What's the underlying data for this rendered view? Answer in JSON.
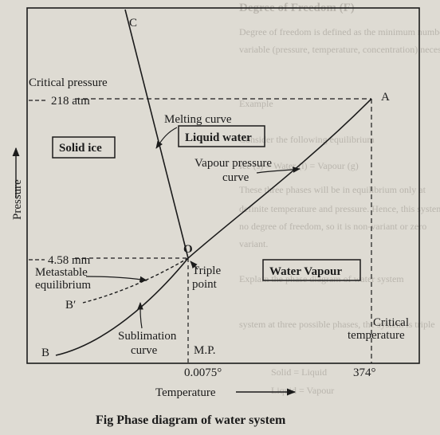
{
  "bleed_text": [
    "Degree of Freedom (F)",
    "Degree of freedom is defined as the minimum number of",
    "variable (pressure, temperature, concentration) necessary to define",
    "Example",
    "Consider the following equilibrium",
    "Ice (s)  =  Water (l)  =  Vapour (g)",
    "These three phases will be in equilibrium only at",
    "definite temperature and pressure. Hence, this system is",
    "no degree of freedom, so it is non-variant or zero",
    "variant.",
    "Explain the phase diagram of water system",
    "system at three possible phases, the system is triple",
    "Solid  =  Liquid",
    "Liquid  =  Vapour"
  ],
  "labels": {
    "c": "C",
    "a": "A",
    "b": "B",
    "b_prime": "B′",
    "o": "O",
    "critical_pressure": "Critical pressure",
    "pressure_218": "218 atm",
    "melting_curve": "Melting curve",
    "solid_ice": "Solid ice",
    "liquid_water": "Liquid water",
    "vapour_pressure_1": "Vapour pressure",
    "vapour_pressure_2": "curve",
    "pressure_458": "4.58 mm",
    "metastable_1": "Metastable",
    "metastable_2": "equilibrium",
    "triple_1": "Triple",
    "triple_2": "point",
    "water_vapour": "Water Vapour",
    "critical_temp_1": "Critical",
    "critical_temp_2": "temperature",
    "sublimation_1": "Sublimation",
    "sublimation_2": "curve",
    "mp": "M.P.",
    "temp_00075": "0.0075°",
    "temp_374": "374°",
    "y_axis": "Pressure",
    "x_axis": "Temperature",
    "caption": "Fig Phase diagram of water system"
  },
  "colors": {
    "ink": "#1b1b1b",
    "paper": "#dedbd3",
    "bleed": "#b9b5ad"
  }
}
